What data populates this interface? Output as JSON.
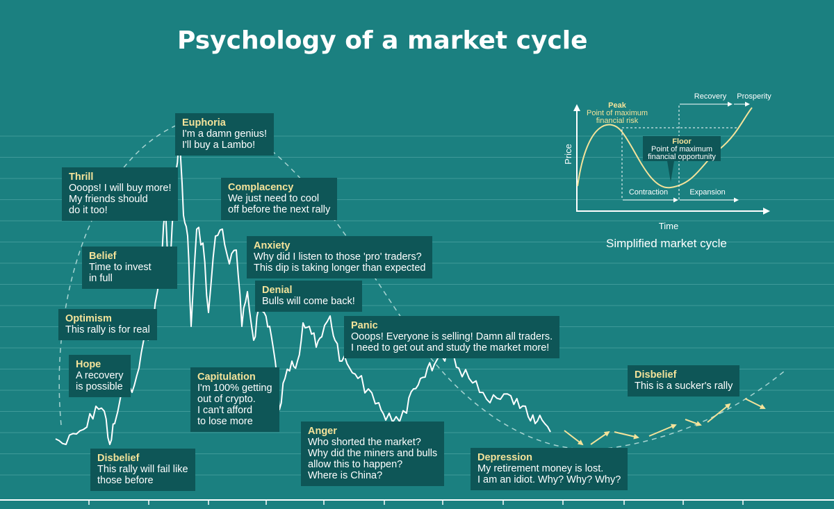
{
  "title": "Psychology of a market cycle",
  "colors": {
    "background": "#1b8080",
    "box": "#0e5657",
    "heading": "#f4e39a",
    "price_line": "#ffffff",
    "arrows": "#f4e39a",
    "inset_curve": "#f4e39a"
  },
  "chart_data": [
    {
      "type": "line",
      "title": "Psychology of a market cycle",
      "xlabel": "",
      "ylabel": "",
      "grid": true,
      "stages": [
        {
          "name": "Disbelief",
          "text": "This rally will fail like those before"
        },
        {
          "name": "Hope",
          "text": "A recovery is possible"
        },
        {
          "name": "Optimism",
          "text": "This rally is for real"
        },
        {
          "name": "Belief",
          "text": "Time to invest in full"
        },
        {
          "name": "Thrill",
          "text": "Ooops! I will buy more! My friends should do it too!"
        },
        {
          "name": "Euphoria",
          "text": "I'm a damn genius! I'll buy a Lambo!"
        },
        {
          "name": "Complacency",
          "text": "We just need to cool off before the next rally"
        },
        {
          "name": "Anxiety",
          "text": "Why did I listen to those 'pro' traders? This dip is taking longer than expected"
        },
        {
          "name": "Denial",
          "text": "Bulls will come back!"
        },
        {
          "name": "Panic",
          "text": "Ooops! Everyone is selling! Damn all traders. I need to get out and study the market more!"
        },
        {
          "name": "Capitulation",
          "text": "I'm 100% getting out of crypto. I can't afford to lose more"
        },
        {
          "name": "Anger",
          "text": "Who shorted the market? Why did the miners and bulls allow this to happen? Where is China?"
        },
        {
          "name": "Depression",
          "text": "My retirement money is lost. I am an idiot. Why? Why? Why?"
        },
        {
          "name": "Disbelief",
          "text": "This is a sucker's rally"
        }
      ]
    },
    {
      "type": "line",
      "title": "Simplified market cycle",
      "xlabel": "Time",
      "ylabel": "Price",
      "annotations": [
        {
          "label": "Peak",
          "text": "Point of maximum financial risk"
        },
        {
          "label": "Floor",
          "text": "Point of maximum financial opportunity"
        },
        {
          "label": "Contraction"
        },
        {
          "label": "Expansion"
        },
        {
          "label": "Recovery"
        },
        {
          "label": "Prosperity"
        }
      ]
    }
  ],
  "boxes": [
    {
      "heading": "Euphoria",
      "text": "I'm a damn genius!\nI'll buy a Lambo!"
    },
    {
      "heading": "Thrill",
      "text": "Ooops! I will buy more!\nMy friends should\ndo it too!"
    },
    {
      "heading": "Complacency",
      "text": "We just need to cool\noff before the next rally"
    },
    {
      "heading": "Belief",
      "text": "Time to invest\nin full"
    },
    {
      "heading": "Anxiety",
      "text": "Why did I listen to those 'pro' traders?\nThis dip is taking longer than expected"
    },
    {
      "heading": "Denial",
      "text": "Bulls will come back!"
    },
    {
      "heading": "Optimism",
      "text": "This rally is for real"
    },
    {
      "heading": "Panic",
      "text": "Ooops! Everyone is selling! Damn all traders.\nI need to get out and study the market more!"
    },
    {
      "heading": "Hope",
      "text": "A recovery\nis possible"
    },
    {
      "heading": "Capitulation",
      "text": "I'm 100% getting\nout of crypto.\nI can't afford\nto lose more"
    },
    {
      "heading": "Disbelief",
      "text": "This is a sucker's rally"
    },
    {
      "heading": "Anger",
      "text": "Who shorted the market?\nWhy did the miners and bulls\nallow this to happen?\nWhere is China?"
    },
    {
      "heading": "Disbelief",
      "text": "This rally will fail like\nthose before"
    },
    {
      "heading": "Depression",
      "text": "My retirement money is lost.\nI am an idiot. Why? Why? Why?"
    }
  ],
  "inset": {
    "caption": "Simplified market cycle",
    "ylabel": "Price",
    "xlabel": "Time",
    "peak_label": "Peak",
    "peak_line1": "Point of maximum",
    "peak_line2": "financial risk",
    "floor_label": "Floor",
    "floor_line1": "Point of maximum",
    "floor_line2": "financial opportunity",
    "contraction": "Contraction",
    "expansion": "Expansion",
    "recovery": "Recovery",
    "prosperity": "Prosperity"
  }
}
